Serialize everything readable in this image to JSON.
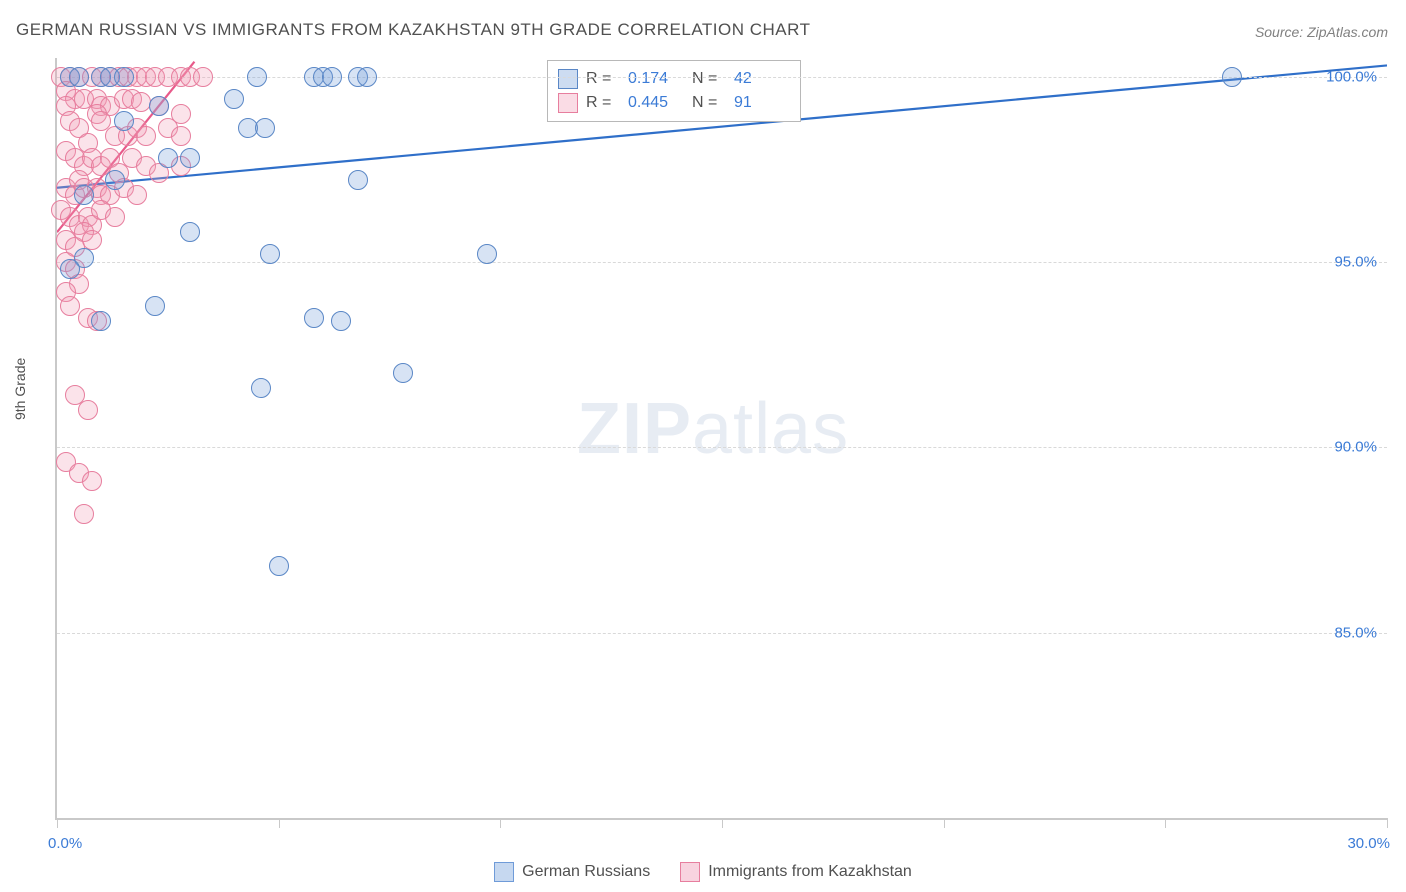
{
  "title": "GERMAN RUSSIAN VS IMMIGRANTS FROM KAZAKHSTAN 9TH GRADE CORRELATION CHART",
  "source_label": "Source: ZipAtlas.com",
  "y_axis_label": "9th Grade",
  "watermark": {
    "zip": "ZIP",
    "atlas": "atlas"
  },
  "chart": {
    "type": "scatter",
    "background_color": "#ffffff",
    "grid_color": "#d9d9d9",
    "axis_color": "#c9c9c9",
    "xlim": [
      0,
      30
    ],
    "ylim": [
      80,
      100.5
    ],
    "y_ticks": [
      85,
      90,
      95,
      100
    ],
    "y_tick_labels": [
      "85.0%",
      "90.0%",
      "95.0%",
      "100.0%"
    ],
    "x_ticks": [
      0,
      5,
      10,
      15,
      20,
      25,
      30
    ],
    "x_tick_labels": [
      "0.0%",
      "",
      "",
      "",
      "",
      "",
      "30.0%"
    ],
    "marker_radius": 10,
    "marker_fill_opacity": 0.28,
    "marker_stroke_width": 1.6,
    "series": [
      {
        "name": "German Russians",
        "color": "#6f9bd8",
        "stroke": "#5a87c6",
        "line_color": "#2f6fc9",
        "line_width": 2.2,
        "r": 0.174,
        "n": 42,
        "trend": {
          "x1": 0,
          "y1": 97.0,
          "x2": 30,
          "y2": 100.3
        },
        "points": [
          [
            0.3,
            100
          ],
          [
            0.5,
            100
          ],
          [
            1.0,
            100
          ],
          [
            1.2,
            100
          ],
          [
            1.5,
            100
          ],
          [
            4.5,
            100
          ],
          [
            5.8,
            100
          ],
          [
            6.0,
            100
          ],
          [
            6.2,
            100
          ],
          [
            6.8,
            100
          ],
          [
            7.0,
            100
          ],
          [
            26.5,
            100
          ],
          [
            2.3,
            99.2
          ],
          [
            4.0,
            99.4
          ],
          [
            1.5,
            98.8
          ],
          [
            4.3,
            98.6
          ],
          [
            4.7,
            98.6
          ],
          [
            2.5,
            97.8
          ],
          [
            3.0,
            97.8
          ],
          [
            1.3,
            97.2
          ],
          [
            6.8,
            97.2
          ],
          [
            0.6,
            96.8
          ],
          [
            3.0,
            95.8
          ],
          [
            0.6,
            95.1
          ],
          [
            0.3,
            94.8
          ],
          [
            2.2,
            93.8
          ],
          [
            4.8,
            95.2
          ],
          [
            9.7,
            95.2
          ],
          [
            1.0,
            93.4
          ],
          [
            5.8,
            93.5
          ],
          [
            6.4,
            93.4
          ],
          [
            4.6,
            91.6
          ],
          [
            7.8,
            92.0
          ],
          [
            5.0,
            86.8
          ]
        ]
      },
      {
        "name": "Immigrants from Kazakhstan",
        "color": "#f19ab4",
        "stroke": "#e77e9e",
        "line_color": "#e85a8a",
        "line_width": 2.2,
        "r": 0.445,
        "n": 91,
        "trend": {
          "x1": 0,
          "y1": 95.8,
          "x2": 3.1,
          "y2": 100.4
        },
        "points": [
          [
            0.1,
            100
          ],
          [
            0.3,
            100
          ],
          [
            0.5,
            100
          ],
          [
            0.8,
            100
          ],
          [
            1.0,
            100
          ],
          [
            1.2,
            100
          ],
          [
            1.4,
            100
          ],
          [
            1.6,
            100
          ],
          [
            1.8,
            100
          ],
          [
            2.0,
            100
          ],
          [
            2.2,
            100
          ],
          [
            2.5,
            100
          ],
          [
            2.8,
            100
          ],
          [
            3.0,
            100
          ],
          [
            3.3,
            100
          ],
          [
            0.2,
            99.6
          ],
          [
            0.4,
            99.4
          ],
          [
            0.6,
            99.4
          ],
          [
            0.2,
            99.2
          ],
          [
            0.9,
            99.4
          ],
          [
            1.0,
            99.2
          ],
          [
            1.2,
            99.2
          ],
          [
            1.5,
            99.4
          ],
          [
            1.7,
            99.4
          ],
          [
            1.9,
            99.3
          ],
          [
            2.3,
            99.2
          ],
          [
            2.8,
            99.0
          ],
          [
            0.3,
            98.8
          ],
          [
            0.5,
            98.6
          ],
          [
            0.9,
            99.0
          ],
          [
            0.7,
            98.2
          ],
          [
            1.0,
            98.8
          ],
          [
            1.3,
            98.4
          ],
          [
            1.6,
            98.4
          ],
          [
            1.8,
            98.6
          ],
          [
            2.0,
            98.4
          ],
          [
            2.5,
            98.6
          ],
          [
            2.8,
            98.4
          ],
          [
            0.2,
            98.0
          ],
          [
            0.4,
            97.8
          ],
          [
            0.6,
            97.6
          ],
          [
            0.8,
            97.8
          ],
          [
            1.0,
            97.6
          ],
          [
            1.2,
            97.8
          ],
          [
            1.4,
            97.4
          ],
          [
            1.7,
            97.8
          ],
          [
            2.0,
            97.6
          ],
          [
            2.3,
            97.4
          ],
          [
            2.8,
            97.6
          ],
          [
            0.2,
            97.0
          ],
          [
            0.4,
            96.8
          ],
          [
            0.5,
            97.2
          ],
          [
            0.6,
            97.0
          ],
          [
            0.9,
            97.0
          ],
          [
            1.0,
            96.8
          ],
          [
            1.2,
            96.8
          ],
          [
            1.5,
            97.0
          ],
          [
            1.8,
            96.8
          ],
          [
            0.1,
            96.4
          ],
          [
            0.3,
            96.2
          ],
          [
            0.5,
            96.0
          ],
          [
            0.7,
            96.2
          ],
          [
            0.8,
            96.0
          ],
          [
            1.0,
            96.4
          ],
          [
            1.3,
            96.2
          ],
          [
            0.2,
            95.6
          ],
          [
            0.4,
            95.4
          ],
          [
            0.6,
            95.8
          ],
          [
            0.8,
            95.6
          ],
          [
            0.2,
            95.0
          ],
          [
            0.4,
            94.8
          ],
          [
            0.5,
            94.4
          ],
          [
            0.2,
            94.2
          ],
          [
            0.3,
            93.8
          ],
          [
            0.7,
            93.5
          ],
          [
            0.9,
            93.4
          ],
          [
            0.4,
            91.4
          ],
          [
            0.7,
            91.0
          ],
          [
            0.2,
            89.6
          ],
          [
            0.5,
            89.3
          ],
          [
            0.8,
            89.1
          ],
          [
            0.6,
            88.2
          ]
        ]
      }
    ]
  },
  "legend_top": {
    "r_label": "R =",
    "n_label": "N ="
  },
  "legend_bottom": [
    {
      "label": "German Russians",
      "swatch_fill": "#c6d8f0",
      "swatch_border": "#6f9bd8"
    },
    {
      "label": "Immigrants from Kazakhstan",
      "swatch_fill": "#f8d3df",
      "swatch_border": "#e77e9e"
    }
  ]
}
